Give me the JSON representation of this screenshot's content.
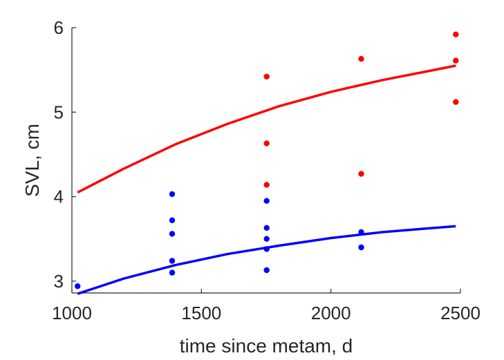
{
  "chart_data": {
    "type": "scatter",
    "title": "",
    "xlabel": "time since metam, d",
    "ylabel": "SVL, cm",
    "xlim": [
      1000,
      2500
    ],
    "ylim": [
      2.86,
      6.0
    ],
    "xticks": [
      1000,
      1500,
      2000,
      2500
    ],
    "yticks": [
      3,
      4,
      5,
      6
    ],
    "grid": false,
    "legend": "none",
    "series": [
      {
        "color": "#ff0000",
        "points": [
          {
            "x": 1752,
            "y": 5.42
          },
          {
            "x": 1752,
            "y": 4.63
          },
          {
            "x": 1752,
            "y": 4.14
          },
          {
            "x": 2117,
            "y": 5.63
          },
          {
            "x": 2117,
            "y": 4.27
          },
          {
            "x": 2482,
            "y": 5.92
          },
          {
            "x": 2482,
            "y": 5.61
          },
          {
            "x": 2482,
            "y": 5.12
          }
        ],
        "curve": [
          {
            "x": 1022,
            "y": 4.05
          },
          {
            "x": 1200,
            "y": 4.33
          },
          {
            "x": 1400,
            "y": 4.62
          },
          {
            "x": 1600,
            "y": 4.86
          },
          {
            "x": 1800,
            "y": 5.07
          },
          {
            "x": 2000,
            "y": 5.24
          },
          {
            "x": 2200,
            "y": 5.38
          },
          {
            "x": 2400,
            "y": 5.5
          },
          {
            "x": 2482,
            "y": 5.55
          }
        ]
      },
      {
        "color": "#0000ff",
        "points": [
          {
            "x": 1022,
            "y": 2.94
          },
          {
            "x": 1387,
            "y": 4.03
          },
          {
            "x": 1387,
            "y": 3.72
          },
          {
            "x": 1387,
            "y": 3.56
          },
          {
            "x": 1387,
            "y": 3.24
          },
          {
            "x": 1387,
            "y": 3.1
          },
          {
            "x": 1752,
            "y": 3.95
          },
          {
            "x": 1752,
            "y": 3.63
          },
          {
            "x": 1752,
            "y": 3.5
          },
          {
            "x": 1752,
            "y": 3.38
          },
          {
            "x": 1752,
            "y": 3.13
          },
          {
            "x": 2117,
            "y": 3.58
          },
          {
            "x": 2117,
            "y": 3.4
          }
        ],
        "curve": [
          {
            "x": 1022,
            "y": 2.85
          },
          {
            "x": 1200,
            "y": 3.03
          },
          {
            "x": 1400,
            "y": 3.19
          },
          {
            "x": 1600,
            "y": 3.32
          },
          {
            "x": 1800,
            "y": 3.42
          },
          {
            "x": 2000,
            "y": 3.51
          },
          {
            "x": 2200,
            "y": 3.58
          },
          {
            "x": 2400,
            "y": 3.63
          },
          {
            "x": 2482,
            "y": 3.65
          }
        ]
      }
    ]
  }
}
